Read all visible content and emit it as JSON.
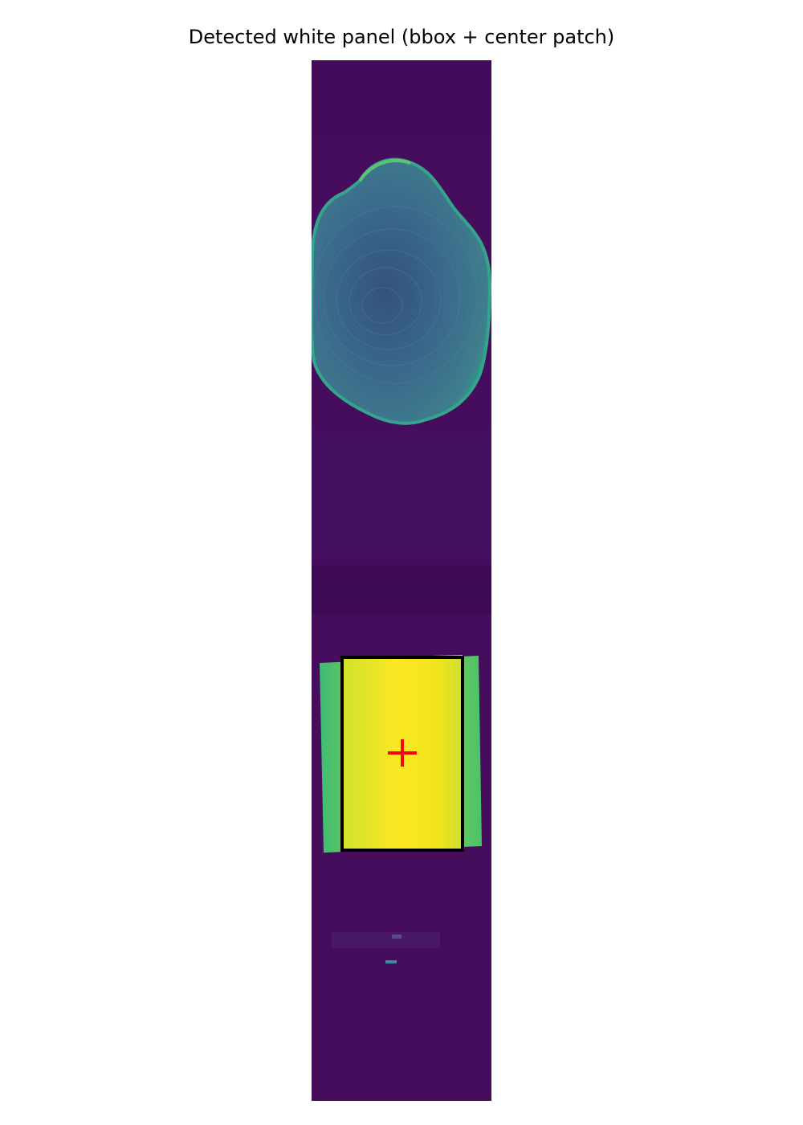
{
  "figure": {
    "title": "Detected white panel (bbox + center patch)"
  },
  "image": {
    "colormap": "viridis",
    "background_color": "#450d5c",
    "strip_band_color": "#3f0a55",
    "wood_slice_color": "#3d6d8c",
    "wood_slice_edge_color": "#2c9a8a",
    "panel_outer_color": "#5cc86a",
    "panel_inner_color": "#f2e51e"
  },
  "annotations": {
    "bbox_color": "#000000",
    "center_marker": "plus-icon",
    "center_marker_color": "#ff0000"
  }
}
